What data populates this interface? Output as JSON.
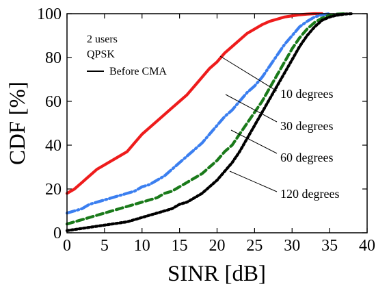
{
  "chart_data": {
    "type": "line",
    "xlabel": "SINR [dB]",
    "ylabel": "CDF [%]",
    "xlim": [
      0,
      40
    ],
    "ylim": [
      0,
      100
    ],
    "x_ticks": [
      "0",
      "5",
      "10",
      "15",
      "20",
      "25",
      "30",
      "35",
      "40"
    ],
    "y_ticks": [
      "0",
      "20",
      "40",
      "60",
      "80",
      "100"
    ],
    "grid": false,
    "annotations": {
      "users": "2 users",
      "modulation": "QPSK",
      "legend_label": "Before CMA",
      "deg10": "10 degrees",
      "deg30": "30 degrees",
      "deg60": "60 degrees",
      "deg120": "120 degrees"
    },
    "series": [
      {
        "color": "#ee1c1c",
        "dash": "solid",
        "x": [
          0,
          1,
          2,
          3,
          4,
          5,
          6,
          7,
          8,
          9,
          10,
          11,
          12,
          13,
          14,
          15,
          16,
          17,
          18,
          19,
          20,
          21,
          22,
          23,
          24,
          25,
          26,
          27,
          28,
          29,
          30,
          31,
          32,
          33,
          34
        ],
        "y": [
          18,
          20,
          23,
          26,
          29,
          31,
          33,
          35,
          37,
          41,
          45,
          48,
          51,
          54,
          57,
          60,
          63,
          67,
          71,
          75,
          78,
          82,
          85,
          88,
          91,
          93,
          95,
          96.5,
          97.5,
          98.5,
          99,
          99.5,
          99.8,
          100,
          100
        ]
      },
      {
        "color": "#3b7ff0",
        "dash": "dashdot",
        "x": [
          0,
          1,
          2,
          3,
          4,
          5,
          6,
          7,
          8,
          9,
          10,
          11,
          12,
          13,
          14,
          15,
          16,
          17,
          18,
          19,
          20,
          21,
          22,
          23,
          24,
          25,
          26,
          27,
          28,
          29,
          30,
          31,
          32,
          33,
          34,
          35
        ],
        "y": [
          9,
          10,
          11,
          13,
          14,
          15,
          16,
          17,
          18,
          19,
          21,
          22,
          24,
          26,
          29,
          32,
          35,
          38,
          41,
          45,
          49,
          53,
          56,
          60,
          64,
          67,
          71,
          76,
          81,
          86,
          90,
          94,
          96.5,
          98.5,
          99.5,
          100
        ]
      },
      {
        "color": "#1a7a1a",
        "dash": "dashed",
        "x": [
          0,
          1,
          2,
          3,
          4,
          5,
          6,
          7,
          8,
          9,
          10,
          11,
          12,
          13,
          14,
          15,
          16,
          17,
          18,
          19,
          20,
          21,
          22,
          23,
          24,
          25,
          26,
          27,
          28,
          29,
          30,
          31,
          32,
          33,
          34,
          35,
          36,
          37
        ],
        "y": [
          4,
          5,
          6,
          7,
          8,
          9,
          10,
          11,
          12,
          13,
          14,
          15,
          16,
          18,
          19,
          21,
          23,
          25,
          27,
          30,
          33,
          37,
          40,
          45,
          50,
          55,
          60,
          66,
          72,
          78,
          84,
          89,
          93,
          96,
          98,
          99.3,
          99.8,
          100
        ]
      },
      {
        "color": "#000000",
        "dash": "dotted",
        "x": [
          0,
          1,
          2,
          3,
          4,
          5,
          6,
          7,
          8,
          9,
          10,
          11,
          12,
          13,
          14,
          15,
          16,
          17,
          18,
          19,
          20,
          21,
          22,
          23,
          24,
          25,
          26,
          27,
          28,
          29,
          30,
          31,
          32,
          33,
          34,
          35,
          36,
          37,
          38
        ],
        "y": [
          1,
          1.5,
          2,
          2.5,
          3,
          3.5,
          4,
          4.5,
          5,
          6,
          7,
          8,
          9,
          10,
          11,
          13,
          14,
          16,
          18,
          21,
          24,
          28,
          32,
          37,
          43,
          49,
          55,
          61,
          67,
          73,
          79,
          85,
          90,
          94,
          97,
          98.5,
          99.3,
          99.8,
          100
        ]
      }
    ]
  }
}
